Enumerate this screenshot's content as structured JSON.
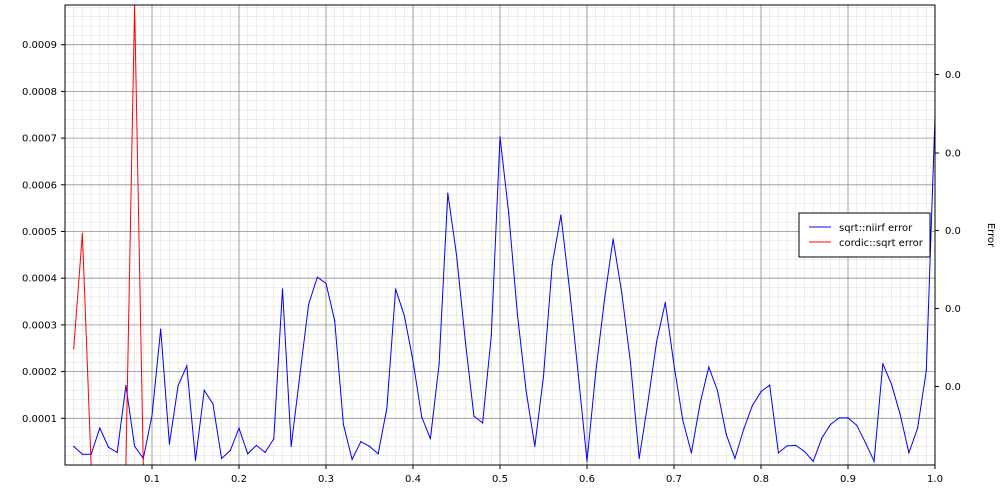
{
  "chart_data": {
    "type": "line",
    "title": "",
    "xlabel": "",
    "ylabel": "",
    "y2label": "Error",
    "xlim": [
      0.0,
      1.0
    ],
    "ylim": [
      0.0,
      0.000985
    ],
    "grid": true,
    "legend_position": "right",
    "x_ticks": [
      {
        "value": 0.1,
        "label": "0.1"
      },
      {
        "value": 0.2,
        "label": "0.2"
      },
      {
        "value": 0.3,
        "label": "0.3"
      },
      {
        "value": 0.4,
        "label": "0.4"
      },
      {
        "value": 0.5,
        "label": "0.5"
      },
      {
        "value": 0.6,
        "label": "0.6"
      },
      {
        "value": 0.7,
        "label": "0.7"
      },
      {
        "value": 0.8,
        "label": "0.8"
      },
      {
        "value": 0.9,
        "label": "0.9"
      },
      {
        "value": 1.0,
        "label": "1.0"
      }
    ],
    "y_ticks": [
      {
        "value": 0.0001,
        "label": "0.0001"
      },
      {
        "value": 0.0002,
        "label": "0.0002"
      },
      {
        "value": 0.0003,
        "label": "0.0003"
      },
      {
        "value": 0.0004,
        "label": "0.0004"
      },
      {
        "value": 0.0005,
        "label": "0.0005"
      },
      {
        "value": 0.0006,
        "label": "0.0006"
      },
      {
        "value": 0.0007,
        "label": "0.0007"
      },
      {
        "value": 0.0008,
        "label": "0.0008"
      },
      {
        "value": 0.0009,
        "label": "0.0009"
      }
    ],
    "y2_ticks": [
      {
        "value": 0.000168,
        "label": "0.0"
      },
      {
        "value": 0.000335,
        "label": "0.0"
      },
      {
        "value": 0.000502,
        "label": "0.0"
      },
      {
        "value": 0.000668,
        "label": "0.0"
      },
      {
        "value": 0.000836,
        "label": "0.0"
      }
    ],
    "series": [
      {
        "name": "sqrt::niirf error",
        "color": "#0000ff",
        "points": [
          [
            0.01,
            4e-05
          ],
          [
            0.02,
            2.3e-05
          ],
          [
            0.03,
            2.3e-05
          ],
          [
            0.04,
            7.9e-05
          ],
          [
            0.05,
            3.8e-05
          ],
          [
            0.06,
            2.7e-05
          ],
          [
            0.07,
            0.00017
          ],
          [
            0.08,
            4e-05
          ],
          [
            0.09,
            1.4e-05
          ],
          [
            0.1,
            0.000106
          ],
          [
            0.11,
            0.000291
          ],
          [
            0.12,
            4.5e-05
          ],
          [
            0.13,
            0.00017
          ],
          [
            0.14,
            0.000212
          ],
          [
            0.15,
            1e-05
          ],
          [
            0.16,
            0.00016
          ],
          [
            0.17,
            0.000131
          ],
          [
            0.18,
            1.4e-05
          ],
          [
            0.19,
            3.1e-05
          ],
          [
            0.2,
            7.9e-05
          ],
          [
            0.21,
            2.4e-05
          ],
          [
            0.22,
            4.2e-05
          ],
          [
            0.23,
            2.7e-05
          ],
          [
            0.24,
            5.6e-05
          ],
          [
            0.25,
            0.000377
          ],
          [
            0.26,
            4e-05
          ],
          [
            0.27,
            0.000193
          ],
          [
            0.28,
            0.000344
          ],
          [
            0.29,
            0.000402
          ],
          [
            0.3,
            0.000389
          ],
          [
            0.31,
            0.000309
          ],
          [
            0.32,
            8.7e-05
          ],
          [
            0.33,
            1.2e-05
          ],
          [
            0.34,
            5e-05
          ],
          [
            0.35,
            4e-05
          ],
          [
            0.36,
            2.4e-05
          ],
          [
            0.37,
            0.000122
          ],
          [
            0.38,
            0.000377
          ],
          [
            0.39,
            0.00032
          ],
          [
            0.4,
            0.000223
          ],
          [
            0.41,
            0.000103
          ],
          [
            0.42,
            5.6e-05
          ],
          [
            0.43,
            0.000216
          ],
          [
            0.44,
            0.000582
          ],
          [
            0.45,
            0.00045
          ],
          [
            0.46,
            0.000268
          ],
          [
            0.47,
            0.000105
          ],
          [
            0.48,
            9e-05
          ],
          [
            0.49,
            0.000277
          ],
          [
            0.5,
            0.000703
          ],
          [
            0.51,
            0.000539
          ],
          [
            0.52,
            0.000323
          ],
          [
            0.53,
            0.000159
          ],
          [
            0.54,
            4e-05
          ],
          [
            0.55,
            0.00019
          ],
          [
            0.56,
            0.000429
          ],
          [
            0.57,
            0.000535
          ],
          [
            0.58,
            0.000375
          ],
          [
            0.59,
            0.000193
          ],
          [
            0.6,
            8e-06
          ],
          [
            0.61,
            0.000198
          ],
          [
            0.62,
            0.000353
          ],
          [
            0.63,
            0.000484
          ],
          [
            0.64,
            0.000368
          ],
          [
            0.65,
            0.000219
          ],
          [
            0.66,
            1.4e-05
          ],
          [
            0.67,
            0.000134
          ],
          [
            0.68,
            0.000264
          ],
          [
            0.69,
            0.000348
          ],
          [
            0.7,
            0.000214
          ],
          [
            0.71,
            9.7e-05
          ],
          [
            0.72,
            2.6e-05
          ],
          [
            0.73,
            0.000132
          ],
          [
            0.74,
            0.00021
          ],
          [
            0.75,
            0.000159
          ],
          [
            0.76,
            6.6e-05
          ],
          [
            0.77,
            1.4e-05
          ],
          [
            0.78,
            7.6e-05
          ],
          [
            0.79,
            0.000127
          ],
          [
            0.8,
            0.000157
          ],
          [
            0.81,
            0.000171
          ],
          [
            0.82,
            2.6e-05
          ],
          [
            0.83,
            4.1e-05
          ],
          [
            0.84,
            4.2e-05
          ],
          [
            0.85,
            2.9e-05
          ],
          [
            0.86,
            8e-06
          ],
          [
            0.87,
            5.8e-05
          ],
          [
            0.88,
            8.7e-05
          ],
          [
            0.89,
            0.000101
          ],
          [
            0.9,
            0.000101
          ],
          [
            0.91,
            8.5e-05
          ],
          [
            0.92,
            4.8e-05
          ],
          [
            0.93,
            8e-06
          ],
          [
            0.94,
            0.000217
          ],
          [
            0.95,
            0.000173
          ],
          [
            0.96,
            0.000108
          ],
          [
            0.97,
            2.6e-05
          ],
          [
            0.98,
            7.9e-05
          ],
          [
            0.99,
            0.000202
          ],
          [
            1.0,
            0.000745
          ]
        ]
      },
      {
        "name": "cordic::sqrt error",
        "color": "#ff0000",
        "points": [
          [
            0.01,
            0.000249
          ],
          [
            0.02,
            0.000496
          ],
          [
            0.03,
            0.0
          ],
          [
            0.04,
            0.0
          ],
          [
            0.05,
            0.0
          ],
          [
            0.06,
            0.0
          ],
          [
            0.07,
            0.0
          ],
          [
            0.08,
            0.000985
          ],
          [
            0.09,
            0.0
          ],
          [
            0.1,
            0.0
          ],
          [
            0.11,
            0.0
          ],
          [
            0.12,
            0.0
          ],
          [
            0.13,
            0.0
          ],
          [
            0.14,
            0.0
          ],
          [
            0.15,
            0.0
          ],
          [
            0.16,
            0.0
          ],
          [
            0.17,
            0.0
          ],
          [
            0.18,
            0.0
          ],
          [
            0.19,
            0.0
          ],
          [
            0.2,
            0.0
          ],
          [
            0.21,
            0.0
          ],
          [
            0.22,
            0.0
          ],
          [
            0.23,
            0.0
          ],
          [
            0.24,
            0.0
          ],
          [
            0.25,
            0.0
          ],
          [
            0.26,
            0.0
          ],
          [
            0.27,
            0.0
          ],
          [
            0.28,
            0.0
          ],
          [
            0.29,
            0.0
          ],
          [
            0.3,
            0.0
          ],
          [
            0.31,
            0.0
          ],
          [
            0.32,
            0.0
          ],
          [
            0.33,
            0.0
          ],
          [
            0.34,
            0.0
          ],
          [
            0.35,
            0.0
          ],
          [
            0.36,
            0.0
          ],
          [
            0.37,
            0.0
          ],
          [
            0.38,
            0.0
          ],
          [
            0.39,
            0.0
          ],
          [
            0.4,
            0.0
          ],
          [
            0.41,
            0.0
          ],
          [
            0.42,
            0.0
          ],
          [
            0.43,
            0.0
          ],
          [
            0.44,
            0.0
          ],
          [
            0.45,
            0.0
          ],
          [
            0.46,
            0.0
          ],
          [
            0.47,
            0.0
          ],
          [
            0.48,
            0.0
          ],
          [
            0.49,
            0.0
          ],
          [
            0.5,
            0.0
          ],
          [
            0.51,
            0.0
          ],
          [
            0.52,
            0.0
          ],
          [
            0.53,
            0.0
          ],
          [
            0.54,
            0.0
          ],
          [
            0.55,
            0.0
          ],
          [
            0.56,
            0.0
          ],
          [
            0.57,
            0.0
          ],
          [
            0.58,
            0.0
          ],
          [
            0.59,
            0.0
          ],
          [
            0.6,
            0.0
          ],
          [
            0.61,
            0.0
          ],
          [
            0.62,
            0.0
          ],
          [
            0.63,
            0.0
          ],
          [
            0.64,
            0.0
          ],
          [
            0.65,
            0.0
          ],
          [
            0.66,
            0.0
          ],
          [
            0.67,
            0.0
          ],
          [
            0.68,
            0.0
          ],
          [
            0.69,
            0.0
          ],
          [
            0.7,
            0.0
          ],
          [
            0.71,
            0.0
          ],
          [
            0.72,
            0.0
          ],
          [
            0.73,
            0.0
          ],
          [
            0.74,
            0.0
          ],
          [
            0.75,
            0.0
          ],
          [
            0.76,
            0.0
          ],
          [
            0.77,
            0.0
          ],
          [
            0.78,
            0.0
          ],
          [
            0.79,
            0.0
          ],
          [
            0.8,
            0.0
          ],
          [
            0.81,
            0.0
          ],
          [
            0.82,
            0.0
          ],
          [
            0.83,
            0.0
          ],
          [
            0.84,
            0.0
          ],
          [
            0.85,
            0.0
          ],
          [
            0.86,
            0.0
          ],
          [
            0.87,
            0.0
          ],
          [
            0.88,
            0.0
          ],
          [
            0.89,
            0.0
          ],
          [
            0.9,
            0.0
          ],
          [
            0.91,
            0.0
          ],
          [
            0.92,
            0.0
          ],
          [
            0.93,
            0.0
          ],
          [
            0.94,
            0.0
          ],
          [
            0.95,
            0.0
          ],
          [
            0.96,
            0.0
          ],
          [
            0.97,
            0.0
          ],
          [
            0.98,
            0.0
          ],
          [
            0.99,
            0.0
          ],
          [
            1.0,
            0.0
          ]
        ]
      }
    ]
  }
}
